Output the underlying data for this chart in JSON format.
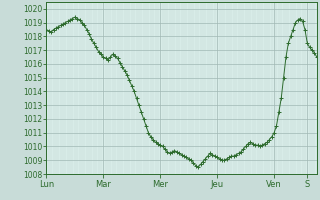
{
  "background_color": "#c8dcd8",
  "plot_bg_color": "#d8ece8",
  "line_color": "#2d6b2d",
  "marker_color": "#2d6b2d",
  "grid_color_major": "#a0b8b4",
  "grid_color_minor": "#c0d4d0",
  "ylim": [
    1008,
    1020.5
  ],
  "yticks": [
    1008,
    1009,
    1010,
    1011,
    1012,
    1013,
    1014,
    1015,
    1016,
    1017,
    1018,
    1019,
    1020
  ],
  "day_labels": [
    "Lun",
    "Mar",
    "Mer",
    "Jeu",
    "Ven",
    "S"
  ],
  "day_positions": [
    0,
    24,
    48,
    72,
    96,
    110
  ],
  "values": [
    1018.5,
    1018.4,
    1018.3,
    1018.5,
    1018.6,
    1018.7,
    1018.8,
    1018.9,
    1019.0,
    1019.1,
    1019.2,
    1019.3,
    1019.4,
    1019.3,
    1019.2,
    1019.0,
    1018.8,
    1018.5,
    1018.2,
    1017.8,
    1017.5,
    1017.2,
    1016.9,
    1016.7,
    1016.5,
    1016.4,
    1016.3,
    1016.5,
    1016.7,
    1016.6,
    1016.4,
    1016.1,
    1015.8,
    1015.5,
    1015.2,
    1014.8,
    1014.4,
    1014.0,
    1013.5,
    1013.0,
    1012.5,
    1012.0,
    1011.5,
    1011.0,
    1010.7,
    1010.5,
    1010.3,
    1010.2,
    1010.1,
    1010.0,
    1009.8,
    1009.6,
    1009.5,
    1009.6,
    1009.7,
    1009.6,
    1009.5,
    1009.4,
    1009.3,
    1009.2,
    1009.1,
    1009.0,
    1008.8,
    1008.6,
    1008.5,
    1008.7,
    1008.9,
    1009.1,
    1009.3,
    1009.5,
    1009.4,
    1009.3,
    1009.2,
    1009.1,
    1009.0,
    1009.0,
    1009.1,
    1009.2,
    1009.3,
    1009.3,
    1009.4,
    1009.5,
    1009.6,
    1009.8,
    1010.0,
    1010.2,
    1010.3,
    1010.2,
    1010.1,
    1010.1,
    1010.0,
    1010.1,
    1010.2,
    1010.3,
    1010.5,
    1010.7,
    1011.0,
    1011.5,
    1012.5,
    1013.5,
    1015.0,
    1016.5,
    1017.5,
    1018.0,
    1018.5,
    1019.0,
    1019.2,
    1019.3,
    1019.1,
    1018.5,
    1017.5,
    1017.2,
    1017.0,
    1016.8,
    1016.5
  ]
}
